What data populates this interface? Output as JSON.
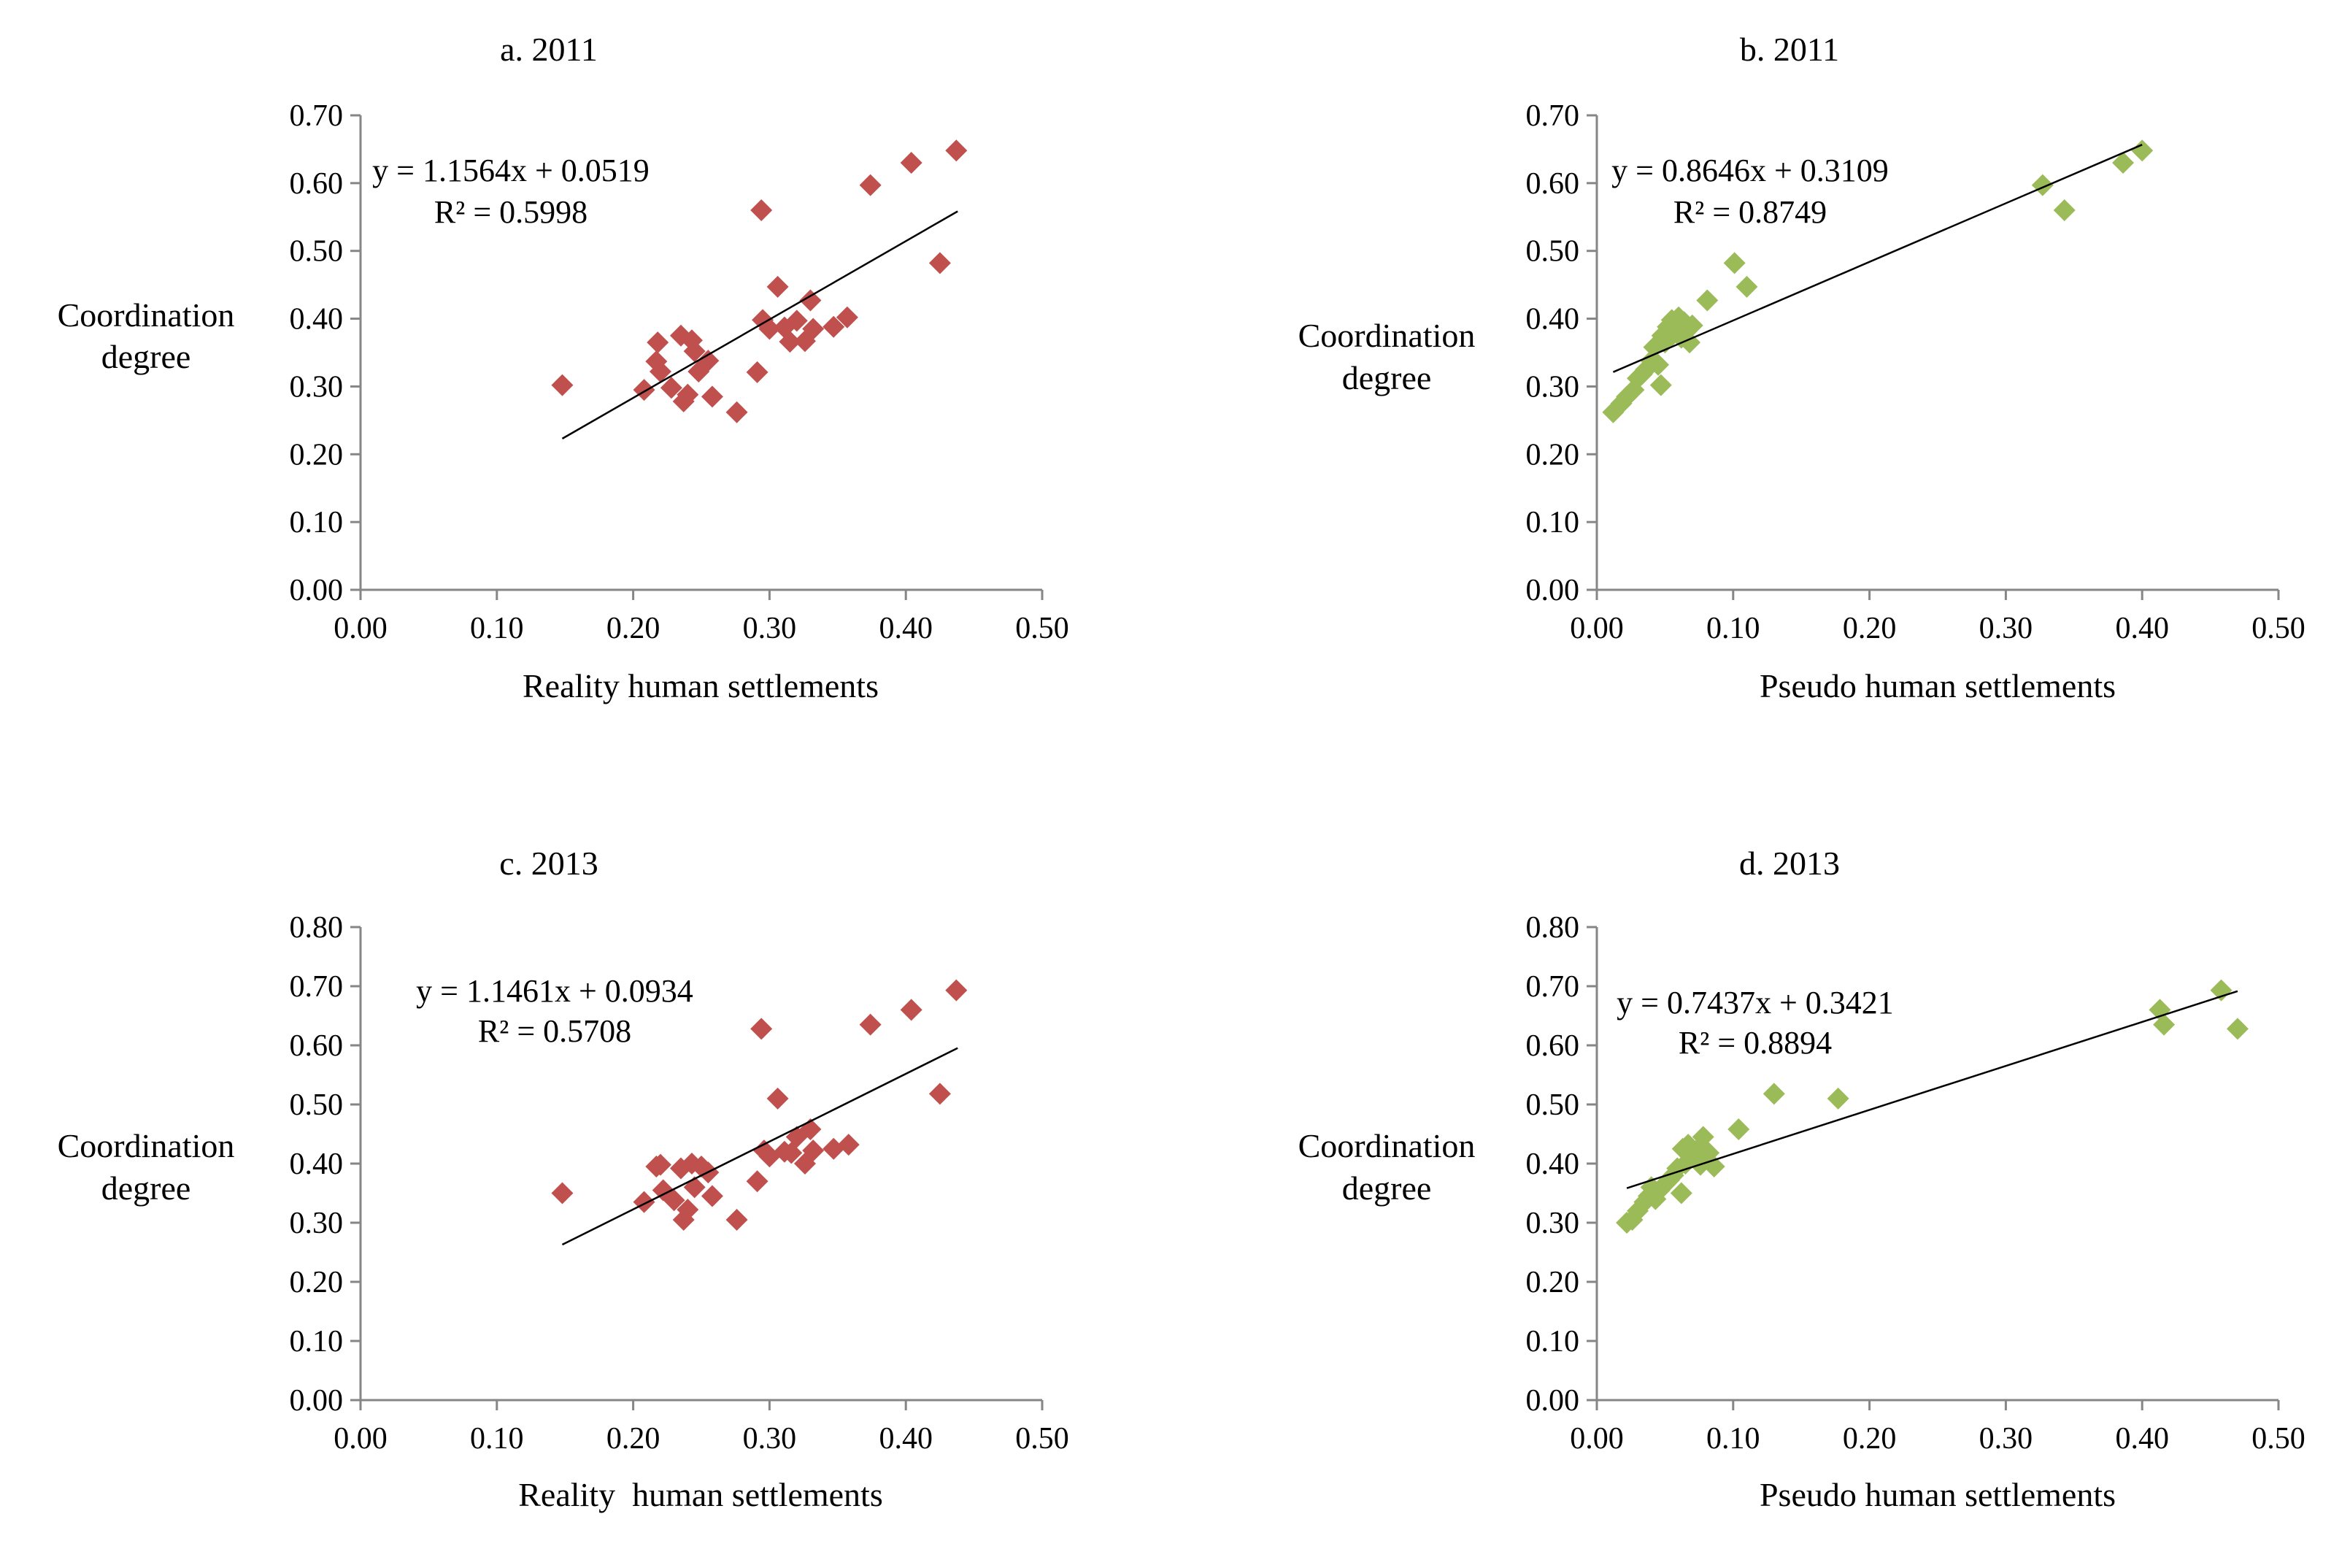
{
  "chart_data": [
    {
      "id": "a",
      "type": "scatter",
      "title": "a. 2011",
      "xlabel": "Reality human settlements",
      "ylabel": "Coordination degree",
      "ylabel_lines": [
        "Coordination",
        "degree"
      ],
      "xlim": [
        0,
        0.5
      ],
      "ylim": [
        0,
        0.7
      ],
      "xticks": [
        "0.00",
        "0.10",
        "0.20",
        "0.30",
        "0.40",
        "0.50"
      ],
      "yticks": [
        "0.00",
        "0.10",
        "0.20",
        "0.30",
        "0.40",
        "0.50",
        "0.60",
        "0.70"
      ],
      "marker_color": "#C0504D",
      "trendline": {
        "slope": 1.1564,
        "intercept": 0.0519,
        "x_range": [
          0.148,
          0.438
        ]
      },
      "equation": "y = 1.1564x + 0.0519",
      "r2": "R² = 0.5998",
      "points": [
        [
          0.148,
          0.302
        ],
        [
          0.208,
          0.295
        ],
        [
          0.217,
          0.337
        ],
        [
          0.218,
          0.365
        ],
        [
          0.22,
          0.322
        ],
        [
          0.228,
          0.298
        ],
        [
          0.235,
          0.375
        ],
        [
          0.237,
          0.278
        ],
        [
          0.24,
          0.288
        ],
        [
          0.243,
          0.368
        ],
        [
          0.245,
          0.352
        ],
        [
          0.248,
          0.322
        ],
        [
          0.255,
          0.338
        ],
        [
          0.258,
          0.285
        ],
        [
          0.276,
          0.262
        ],
        [
          0.291,
          0.321
        ],
        [
          0.294,
          0.56
        ],
        [
          0.295,
          0.398
        ],
        [
          0.3,
          0.385
        ],
        [
          0.306,
          0.447
        ],
        [
          0.311,
          0.387
        ],
        [
          0.315,
          0.366
        ],
        [
          0.32,
          0.397
        ],
        [
          0.326,
          0.367
        ],
        [
          0.33,
          0.427
        ],
        [
          0.332,
          0.385
        ],
        [
          0.347,
          0.388
        ],
        [
          0.357,
          0.402
        ],
        [
          0.374,
          0.597
        ],
        [
          0.404,
          0.63
        ],
        [
          0.425,
          0.482
        ],
        [
          0.437,
          0.648
        ]
      ]
    },
    {
      "id": "b",
      "type": "scatter",
      "title": "b. 2011",
      "xlabel": "Pseudo human settlements",
      "ylabel": "Coordination degree",
      "ylabel_lines": [
        "Coordination",
        "degree"
      ],
      "xlim": [
        0,
        0.5
      ],
      "ylim": [
        0,
        0.7
      ],
      "xticks": [
        "0.00",
        "0.10",
        "0.20",
        "0.30",
        "0.40",
        "0.50"
      ],
      "yticks": [
        "0.00",
        "0.10",
        "0.20",
        "0.30",
        "0.40",
        "0.50",
        "0.60",
        "0.70"
      ],
      "marker_color": "#9BBB59",
      "trendline": {
        "slope": 0.8646,
        "intercept": 0.3109,
        "x_range": [
          0.012,
          0.4
        ]
      },
      "equation": "y = 0.8646x + 0.3109",
      "r2": "R² = 0.8749",
      "points": [
        [
          0.012,
          0.262
        ],
        [
          0.018,
          0.275
        ],
        [
          0.022,
          0.285
        ],
        [
          0.027,
          0.295
        ],
        [
          0.03,
          0.312
        ],
        [
          0.033,
          0.318
        ],
        [
          0.036,
          0.325
        ],
        [
          0.04,
          0.338
        ],
        [
          0.042,
          0.358
        ],
        [
          0.045,
          0.332
        ],
        [
          0.047,
          0.302
        ],
        [
          0.048,
          0.375
        ],
        [
          0.05,
          0.365
        ],
        [
          0.052,
          0.388
        ],
        [
          0.055,
          0.398
        ],
        [
          0.058,
          0.382
        ],
        [
          0.06,
          0.402
        ],
        [
          0.062,
          0.372
        ],
        [
          0.064,
          0.395
        ],
        [
          0.066,
          0.385
        ],
        [
          0.068,
          0.365
        ],
        [
          0.07,
          0.39
        ],
        [
          0.081,
          0.427
        ],
        [
          0.101,
          0.482
        ],
        [
          0.11,
          0.447
        ],
        [
          0.327,
          0.597
        ],
        [
          0.343,
          0.56
        ],
        [
          0.386,
          0.63
        ],
        [
          0.4,
          0.648
        ]
      ]
    },
    {
      "id": "c",
      "type": "scatter",
      "title": "c. 2013",
      "xlabel": "Reality  human settlements",
      "ylabel": "Coordination degree",
      "ylabel_lines": [
        "Coordination",
        "degree"
      ],
      "xlim": [
        0,
        0.5
      ],
      "ylim": [
        0,
        0.8
      ],
      "xticks": [
        "0.00",
        "0.10",
        "0.20",
        "0.30",
        "0.40",
        "0.50"
      ],
      "yticks": [
        "0.00",
        "0.10",
        "0.20",
        "0.30",
        "0.40",
        "0.50",
        "0.60",
        "0.70",
        "0.80"
      ],
      "marker_color": "#C0504D",
      "trendline": {
        "slope": 1.1461,
        "intercept": 0.0934,
        "x_range": [
          0.148,
          0.438
        ]
      },
      "equation": "y = 1.1461x + 0.0934",
      "r2": "R² = 0.5708",
      "points": [
        [
          0.148,
          0.35
        ],
        [
          0.208,
          0.335
        ],
        [
          0.217,
          0.395
        ],
        [
          0.22,
          0.398
        ],
        [
          0.222,
          0.355
        ],
        [
          0.23,
          0.338
        ],
        [
          0.235,
          0.392
        ],
        [
          0.237,
          0.305
        ],
        [
          0.24,
          0.322
        ],
        [
          0.243,
          0.4
        ],
        [
          0.245,
          0.36
        ],
        [
          0.25,
          0.395
        ],
        [
          0.255,
          0.385
        ],
        [
          0.258,
          0.345
        ],
        [
          0.276,
          0.305
        ],
        [
          0.291,
          0.37
        ],
        [
          0.294,
          0.628
        ],
        [
          0.296,
          0.422
        ],
        [
          0.3,
          0.412
        ],
        [
          0.306,
          0.51
        ],
        [
          0.311,
          0.42
        ],
        [
          0.316,
          0.418
        ],
        [
          0.32,
          0.445
        ],
        [
          0.326,
          0.4
        ],
        [
          0.33,
          0.458
        ],
        [
          0.332,
          0.422
        ],
        [
          0.347,
          0.425
        ],
        [
          0.358,
          0.432
        ],
        [
          0.374,
          0.635
        ],
        [
          0.404,
          0.66
        ],
        [
          0.425,
          0.518
        ],
        [
          0.437,
          0.693
        ]
      ]
    },
    {
      "id": "d",
      "type": "scatter",
      "title": "d. 2013",
      "xlabel": "Pseudo human settlements",
      "ylabel": "Coordination degree",
      "ylabel_lines": [
        "Coordination",
        "degree"
      ],
      "xlim": [
        0,
        0.5
      ],
      "ylim": [
        0,
        0.8
      ],
      "xticks": [
        "0.00",
        "0.10",
        "0.20",
        "0.30",
        "0.40",
        "0.50"
      ],
      "yticks": [
        "0.00",
        "0.10",
        "0.20",
        "0.30",
        "0.40",
        "0.50",
        "0.60",
        "0.70",
        "0.80"
      ],
      "marker_color": "#9BBB59",
      "trendline": {
        "slope": 0.7437,
        "intercept": 0.3421,
        "x_range": [
          0.022,
          0.47
        ]
      },
      "equation": "y = 0.7437x + 0.3421",
      "r2": "R² = 0.8894",
      "points": [
        [
          0.022,
          0.3
        ],
        [
          0.026,
          0.305
        ],
        [
          0.03,
          0.32
        ],
        [
          0.035,
          0.335
        ],
        [
          0.038,
          0.345
        ],
        [
          0.04,
          0.36
        ],
        [
          0.043,
          0.34
        ],
        [
          0.046,
          0.355
        ],
        [
          0.05,
          0.365
        ],
        [
          0.053,
          0.372
        ],
        [
          0.056,
          0.38
        ],
        [
          0.059,
          0.392
        ],
        [
          0.062,
          0.35
        ],
        [
          0.063,
          0.425
        ],
        [
          0.065,
          0.4
        ],
        [
          0.067,
          0.432
        ],
        [
          0.07,
          0.412
        ],
        [
          0.073,
          0.422
        ],
        [
          0.076,
          0.398
        ],
        [
          0.078,
          0.445
        ],
        [
          0.082,
          0.418
        ],
        [
          0.086,
          0.395
        ],
        [
          0.104,
          0.458
        ],
        [
          0.13,
          0.518
        ],
        [
          0.177,
          0.51
        ],
        [
          0.413,
          0.66
        ],
        [
          0.416,
          0.635
        ],
        [
          0.458,
          0.693
        ],
        [
          0.47,
          0.628
        ]
      ]
    }
  ]
}
